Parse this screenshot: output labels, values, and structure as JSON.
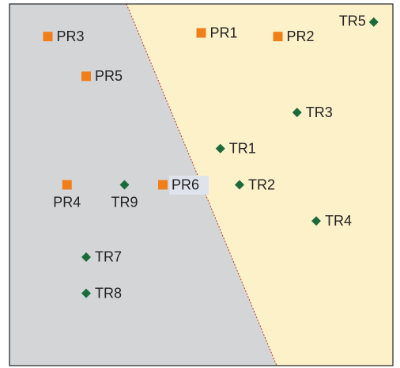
{
  "chart_data": {
    "type": "scatter",
    "xlim": [
      0,
      100
    ],
    "ylim": [
      0,
      100
    ],
    "series": [
      {
        "marker": "square",
        "color": "#f07f1a",
        "labels": [
          "PR1",
          "PR2",
          "PR3",
          "PR4",
          "PR5",
          "PR6"
        ],
        "x": [
          50,
          70,
          10,
          15,
          20,
          40
        ],
        "values": [
          92,
          91,
          91,
          50,
          80,
          50
        ]
      },
      {
        "marker": "diamond",
        "color": "#1b6b3a",
        "labels": [
          "TR1",
          "TR2",
          "TR3",
          "TR4",
          "TR5",
          "TR7",
          "TR8",
          "TR9"
        ],
        "x": [
          55,
          60,
          75,
          80,
          95,
          20,
          20,
          30
        ],
        "values": [
          60,
          50,
          70,
          40,
          95,
          30,
          20,
          50
        ]
      }
    ]
  }
}
